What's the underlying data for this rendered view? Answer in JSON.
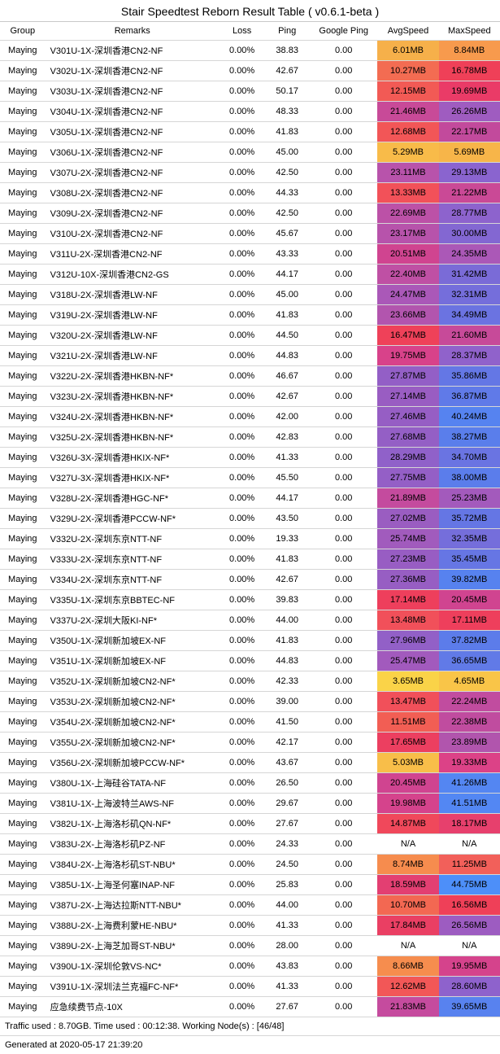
{
  "title": "Stair Speedtest Reborn Result Table ( v0.6.1-beta )",
  "columns": [
    "Group",
    "Remarks",
    "Loss",
    "Ping",
    "Google Ping",
    "AvgSpeed",
    "MaxSpeed"
  ],
  "rows": [
    {
      "group": "Maying",
      "remarks": "V301U-1X-深圳香港CN2-NF",
      "loss": "0.00%",
      "ping": "38.83",
      "gping": "0.00",
      "avg": "6.01MB",
      "avgColor": "#f6b04a",
      "max": "8.84MB",
      "maxColor": "#f79a4d"
    },
    {
      "group": "Maying",
      "remarks": "V302U-1X-深圳香港CN2-NF",
      "loss": "0.00%",
      "ping": "42.67",
      "gping": "0.00",
      "avg": "10.27MB",
      "avgColor": "#f36c52",
      "max": "16.78MB",
      "maxColor": "#ef4058"
    },
    {
      "group": "Maying",
      "remarks": "V303U-1X-深圳香港CN2-NF",
      "loss": "0.00%",
      "ping": "50.17",
      "gping": "0.00",
      "avg": "12.15MB",
      "avgColor": "#f25a55",
      "max": "19.69MB",
      "maxColor": "#ea3b67"
    },
    {
      "group": "Maying",
      "remarks": "V304U-1X-深圳香港CN2-NF",
      "loss": "0.00%",
      "ping": "48.33",
      "gping": "0.00",
      "avg": "21.46MB",
      "avgColor": "#c84a98",
      "max": "26.26MB",
      "maxColor": "#9f5cc0"
    },
    {
      "group": "Maying",
      "remarks": "V305U-1X-深圳香港CN2-NF",
      "loss": "0.00%",
      "ping": "41.83",
      "gping": "0.00",
      "avg": "12.68MB",
      "avgColor": "#f25657",
      "max": "22.17MB",
      "maxColor": "#c24a9c"
    },
    {
      "group": "Maying",
      "remarks": "V306U-1X-深圳香港CN2-NF",
      "loss": "0.00%",
      "ping": "45.00",
      "gping": "0.00",
      "avg": "5.29MB",
      "avgColor": "#f8bb49",
      "max": "5.69MB",
      "maxColor": "#f7b549"
    },
    {
      "group": "Maying",
      "remarks": "V307U-2X-深圳香港CN2-NF",
      "loss": "0.00%",
      "ping": "42.50",
      "gping": "0.00",
      "avg": "23.11MB",
      "avgColor": "#b853ab",
      "max": "29.13MB",
      "maxColor": "#8a64cf"
    },
    {
      "group": "Maying",
      "remarks": "V308U-2X-深圳香港CN2-NF",
      "loss": "0.00%",
      "ping": "44.33",
      "gping": "0.00",
      "avg": "13.33MB",
      "avgColor": "#f25159",
      "max": "21.22MB",
      "maxColor": "#ca4996"
    },
    {
      "group": "Maying",
      "remarks": "V309U-2X-深圳香港CN2-NF",
      "loss": "0.00%",
      "ping": "42.50",
      "gping": "0.00",
      "avg": "22.69MB",
      "avgColor": "#bc51a7",
      "max": "28.77MB",
      "maxColor": "#8d63cd"
    },
    {
      "group": "Maying",
      "remarks": "V310U-2X-深圳香港CN2-NF",
      "loss": "0.00%",
      "ping": "45.67",
      "gping": "0.00",
      "avg": "23.17MB",
      "avgColor": "#b753ab",
      "max": "30.00MB",
      "maxColor": "#8367d2"
    },
    {
      "group": "Maying",
      "remarks": "V311U-2X-深圳香港CN2-NF",
      "loss": "0.00%",
      "ping": "43.33",
      "gping": "0.00",
      "avg": "20.51MB",
      "avgColor": "#d04490",
      "max": "24.35MB",
      "maxColor": "#ab58b7"
    },
    {
      "group": "Maying",
      "remarks": "V312U-10X-深圳香港CN2-GS",
      "loss": "0.00%",
      "ping": "44.17",
      "gping": "0.00",
      "avg": "22.40MB",
      "avgColor": "#bf50a4",
      "max": "31.42MB",
      "maxColor": "#7a6bd7"
    },
    {
      "group": "Maying",
      "remarks": "V318U-2X-深圳香港LW-NF",
      "loss": "0.00%",
      "ping": "45.00",
      "gping": "0.00",
      "avg": "24.47MB",
      "avgColor": "#aa58b8",
      "max": "32.31MB",
      "maxColor": "#756edb"
    },
    {
      "group": "Maying",
      "remarks": "V319U-2X-深圳香港LW-NF",
      "loss": "0.00%",
      "ping": "41.83",
      "gping": "0.00",
      "avg": "23.66MB",
      "avgColor": "#b255ae",
      "max": "34.49MB",
      "maxColor": "#6b73e1"
    },
    {
      "group": "Maying",
      "remarks": "V320U-2X-深圳香港LW-NF",
      "loss": "0.00%",
      "ping": "44.50",
      "gping": "0.00",
      "avg": "16.47MB",
      "avgColor": "#ef4159",
      "max": "21.60MB",
      "maxColor": "#c74a99"
    },
    {
      "group": "Maying",
      "remarks": "V321U-2X-深圳香港LW-NF",
      "loss": "0.00%",
      "ping": "44.83",
      "gping": "0.00",
      "avg": "19.75MB",
      "avgColor": "#d8428a",
      "max": "28.37MB",
      "maxColor": "#9062cb"
    },
    {
      "group": "Maying",
      "remarks": "V322U-2X-深圳香港HKBN-NF*",
      "loss": "0.00%",
      "ping": "46.67",
      "gping": "0.00",
      "avg": "27.87MB",
      "avgColor": "#935fc6",
      "max": "35.86MB",
      "maxColor": "#6477e5"
    },
    {
      "group": "Maying",
      "remarks": "V323U-2X-深圳香港HKBN-NF*",
      "loss": "0.00%",
      "ping": "42.67",
      "gping": "0.00",
      "avg": "27.14MB",
      "avgColor": "#995dc2",
      "max": "36.87MB",
      "maxColor": "#607ae8"
    },
    {
      "group": "Maying",
      "remarks": "V324U-2X-深圳香港HKBN-NF*",
      "loss": "0.00%",
      "ping": "42.00",
      "gping": "0.00",
      "avg": "27.46MB",
      "avgColor": "#965ec4",
      "max": "40.24MB",
      "maxColor": "#5683f0"
    },
    {
      "group": "Maying",
      "remarks": "V325U-2X-深圳香港HKBN-NF*",
      "loss": "0.00%",
      "ping": "42.83",
      "gping": "0.00",
      "avg": "27.68MB",
      "avgColor": "#945fc5",
      "max": "38.27MB",
      "maxColor": "#5a7eeb"
    },
    {
      "group": "Maying",
      "remarks": "V326U-3X-深圳香港HKIX-NF*",
      "loss": "0.00%",
      "ping": "41.33",
      "gping": "0.00",
      "avg": "28.29MB",
      "avgColor": "#9061c9",
      "max": "34.70MB",
      "maxColor": "#6a74e2"
    },
    {
      "group": "Maying",
      "remarks": "V327U-3X-深圳香港HKIX-NF*",
      "loss": "0.00%",
      "ping": "45.50",
      "gping": "0.00",
      "avg": "27.75MB",
      "avgColor": "#945fc6",
      "max": "38.00MB",
      "maxColor": "#5b7deb"
    },
    {
      "group": "Maying",
      "remarks": "V328U-2X-深圳香港HGC-NF*",
      "loss": "0.00%",
      "ping": "44.17",
      "gping": "0.00",
      "avg": "21.89MB",
      "avgColor": "#c44b9e",
      "max": "25.23MB",
      "maxColor": "#a35abc"
    },
    {
      "group": "Maying",
      "remarks": "V329U-2X-深圳香港PCCW-NF*",
      "loss": "0.00%",
      "ping": "43.50",
      "gping": "0.00",
      "avg": "27.02MB",
      "avgColor": "#9a5dc1",
      "max": "35.72MB",
      "maxColor": "#6576e4"
    },
    {
      "group": "Maying",
      "remarks": "V332U-2X-深圳东京NTT-NF",
      "loss": "0.00%",
      "ping": "19.33",
      "gping": "0.00",
      "avg": "25.74MB",
      "avgColor": "#a15bbd",
      "max": "32.35MB",
      "maxColor": "#756edb"
    },
    {
      "group": "Maying",
      "remarks": "V333U-2X-深圳东京NTT-NF",
      "loss": "0.00%",
      "ping": "41.83",
      "gping": "0.00",
      "avg": "27.23MB",
      "avgColor": "#985dc3",
      "max": "35.45MB",
      "maxColor": "#6676e4"
    },
    {
      "group": "Maying",
      "remarks": "V334U-2X-深圳东京NTT-NF",
      "loss": "0.00%",
      "ping": "42.67",
      "gping": "0.00",
      "avg": "27.36MB",
      "avgColor": "#975ec3",
      "max": "39.82MB",
      "maxColor": "#5782ef"
    },
    {
      "group": "Maying",
      "remarks": "V335U-1X-深圳东京BBTEC-NF",
      "loss": "0.00%",
      "ping": "39.83",
      "gping": "0.00",
      "avg": "17.14MB",
      "avgColor": "#ee3f5c",
      "max": "20.45MB",
      "maxColor": "#d04490"
    },
    {
      "group": "Maying",
      "remarks": "V337U-2X-深圳大阪KI-NF*",
      "loss": "0.00%",
      "ping": "44.00",
      "gping": "0.00",
      "avg": "13.48MB",
      "avgColor": "#f1505a",
      "max": "17.11MB",
      "maxColor": "#ee3f5c"
    },
    {
      "group": "Maying",
      "remarks": "V350U-1X-深圳新加坡EX-NF",
      "loss": "0.00%",
      "ping": "41.83",
      "gping": "0.00",
      "avg": "27.96MB",
      "avgColor": "#9260c7",
      "max": "37.82MB",
      "maxColor": "#5c7cea"
    },
    {
      "group": "Maying",
      "remarks": "V351U-1X-深圳新加坡EX-NF",
      "loss": "0.00%",
      "ping": "44.83",
      "gping": "0.00",
      "avg": "25.47MB",
      "avgColor": "#a25abd",
      "max": "36.65MB",
      "maxColor": "#617ae7"
    },
    {
      "group": "Maying",
      "remarks": "V352U-1X-深圳新加坡CN2-NF*",
      "loss": "0.00%",
      "ping": "42.33",
      "gping": "0.00",
      "avg": "3.65MB",
      "avgColor": "#fad348",
      "max": "4.65MB",
      "maxColor": "#f9c548"
    },
    {
      "group": "Maying",
      "remarks": "V353U-2X-深圳新加坡CN2-NF*",
      "loss": "0.00%",
      "ping": "39.00",
      "gping": "0.00",
      "avg": "13.47MB",
      "avgColor": "#f1505a",
      "max": "22.24MB",
      "maxColor": "#c14c9f"
    },
    {
      "group": "Maying",
      "remarks": "V354U-2X-深圳新加坡CN2-NF*",
      "loss": "0.00%",
      "ping": "41.50",
      "gping": "0.00",
      "avg": "11.51MB",
      "avgColor": "#f25e54",
      "max": "22.38MB",
      "maxColor": "#c04c9f"
    },
    {
      "group": "Maying",
      "remarks": "V355U-2X-深圳新加坡CN2-NF*",
      "loss": "0.00%",
      "ping": "42.17",
      "gping": "0.00",
      "avg": "17.65MB",
      "avgColor": "#ec3f60",
      "max": "23.89MB",
      "maxColor": "#b155ad"
    },
    {
      "group": "Maying",
      "remarks": "V356U-2X-深圳新加坡PCCW-NF*",
      "loss": "0.00%",
      "ping": "43.67",
      "gping": "0.00",
      "avg": "5.03MB",
      "avgColor": "#f8be49",
      "max": "19.33MB",
      "maxColor": "#dc4287"
    },
    {
      "group": "Maying",
      "remarks": "V380U-1X-上海硅谷TATA-NF",
      "loss": "0.00%",
      "ping": "26.50",
      "gping": "0.00",
      "avg": "20.45MB",
      "avgColor": "#d04490",
      "max": "41.26MB",
      "maxColor": "#5486f2"
    },
    {
      "group": "Maying",
      "remarks": "V381U-1X-上海波特兰AWS-NF",
      "loss": "0.00%",
      "ping": "29.67",
      "gping": "0.00",
      "avg": "19.98MB",
      "avgColor": "#d5438c",
      "max": "41.51MB",
      "maxColor": "#5387f3"
    },
    {
      "group": "Maying",
      "remarks": "V382U-1X-上海洛杉矶QN-NF*",
      "loss": "0.00%",
      "ping": "27.67",
      "gping": "0.00",
      "avg": "14.87MB",
      "avgColor": "#f0485b",
      "max": "18.17MB",
      "maxColor": "#e7406d"
    },
    {
      "group": "Maying",
      "remarks": "V383U-2X-上海洛杉矶PZ-NF",
      "loss": "0.00%",
      "ping": "24.33",
      "gping": "0.00",
      "avg": "N/A",
      "avgColor": "#ffffff",
      "max": "N/A",
      "maxColor": "#ffffff"
    },
    {
      "group": "Maying",
      "remarks": "V384U-2X-上海洛杉矶ST-NBU*",
      "loss": "0.00%",
      "ping": "24.50",
      "gping": "0.00",
      "avg": "8.74MB",
      "avgColor": "#f68c4e",
      "max": "11.25MB",
      "maxColor": "#f2605a"
    },
    {
      "group": "Maying",
      "remarks": "V385U-1X-上海圣何塞INAP-NF",
      "loss": "0.00%",
      "ping": "25.83",
      "gping": "0.00",
      "avg": "18.59MB",
      "avgColor": "#e33f72",
      "max": "44.75MB",
      "maxColor": "#4d8ff9"
    },
    {
      "group": "Maying",
      "remarks": "V387U-2X-上海达拉斯NTT-NBU*",
      "loss": "0.00%",
      "ping": "44.00",
      "gping": "0.00",
      "avg": "10.70MB",
      "avgColor": "#f36852",
      "max": "16.56MB",
      "maxColor": "#ef4058"
    },
    {
      "group": "Maying",
      "remarks": "V388U-2X-上海费利蒙HE-NBU*",
      "loss": "0.00%",
      "ping": "41.33",
      "gping": "0.00",
      "avg": "17.84MB",
      "avgColor": "#ea3f63",
      "max": "26.56MB",
      "maxColor": "#9d5cc1"
    },
    {
      "group": "Maying",
      "remarks": "V389U-2X-上海芝加哥ST-NBU*",
      "loss": "0.00%",
      "ping": "28.00",
      "gping": "0.00",
      "avg": "N/A",
      "avgColor": "#ffffff",
      "max": "N/A",
      "maxColor": "#ffffff"
    },
    {
      "group": "Maying",
      "remarks": "V390U-1X-深圳伦敦VS-NC*",
      "loss": "0.00%",
      "ping": "43.83",
      "gping": "0.00",
      "avg": "8.66MB",
      "avgColor": "#f68d4e",
      "max": "19.95MB",
      "maxColor": "#d5438c"
    },
    {
      "group": "Maying",
      "remarks": "V391U-1X-深圳法兰克福FC-NF*",
      "loss": "0.00%",
      "ping": "41.33",
      "gping": "0.00",
      "avg": "12.62MB",
      "avgColor": "#f25757",
      "max": "28.60MB",
      "maxColor": "#8e62cc"
    },
    {
      "group": "Maying",
      "remarks": "应急续费节点-10X",
      "loss": "0.00%",
      "ping": "27.67",
      "gping": "0.00",
      "avg": "21.83MB",
      "avgColor": "#c54b9e",
      "max": "39.65MB",
      "maxColor": "#5882ef"
    }
  ],
  "footer1": "Traffic used : 8.70GB. Time used : 00:12:38. Working Node(s) : [46/48]",
  "footer2": "Generated at 2020-05-17 21:39:20"
}
